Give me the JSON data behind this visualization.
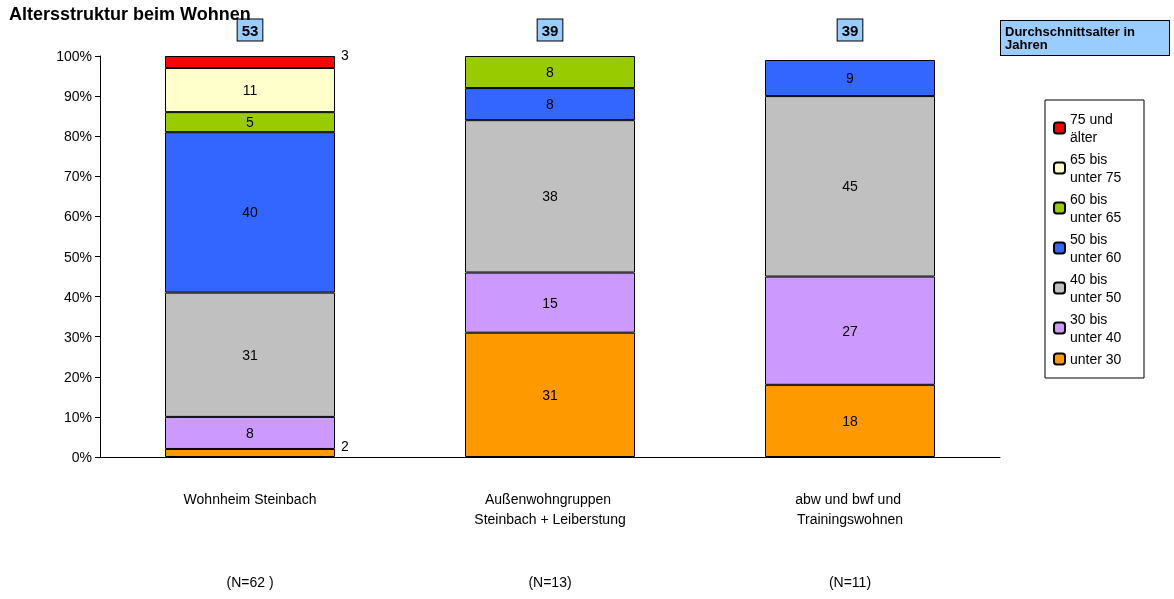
{
  "chart_data": {
    "type": "bar",
    "title": "Altersstruktur beim Wohnen",
    "stacked": true,
    "data_labels": true,
    "grid": false,
    "legend": "right",
    "categories": [
      "Wohnheim Steinbach",
      "Außenwohngruppen Steinbach + Leiberstung",
      "abw und bwf und Trainingswohnen"
    ],
    "ylim": [
      0,
      100
    ],
    "yticks": [
      {
        "value": 0,
        "label": "0%"
      },
      {
        "value": 10,
        "label": "10%"
      },
      {
        "value": 20,
        "label": "20%"
      },
      {
        "value": 30,
        "label": "30%"
      },
      {
        "value": 40,
        "label": "40%"
      },
      {
        "value": 50,
        "label": "50%"
      },
      {
        "value": 60,
        "label": "60%"
      },
      {
        "value": 70,
        "label": "70%"
      },
      {
        "value": 80,
        "label": "80%"
      },
      {
        "value": 90,
        "label": "90%"
      },
      {
        "value": 100,
        "label": "100%"
      }
    ],
    "series": [
      {
        "name": "unter 30",
        "color": "#ff9900",
        "values": [
          2,
          31,
          18
        ]
      },
      {
        "name": "30 bis unter 40",
        "color": "#cc99ff",
        "values": [
          8,
          15,
          27
        ]
      },
      {
        "name": "40 bis unter 50",
        "color": "#c0c0c0",
        "values": [
          31,
          38,
          45
        ]
      },
      {
        "name": "50 bis unter 60",
        "color": "#3366ff",
        "values": [
          40,
          8,
          9
        ]
      },
      {
        "name": "60 bis unter 65",
        "color": "#99cc00",
        "values": [
          5,
          8,
          null
        ]
      },
      {
        "name": "65 bis unter 75",
        "color": "#ffffcc",
        "values": [
          11,
          null,
          null
        ]
      },
      {
        "name": "75 und älter",
        "color": "#ff0000",
        "values": [
          3,
          null,
          null
        ]
      }
    ],
    "annotations": [
      "53",
      "39",
      "39",
      "Durchschnittsalter in Jahren",
      "(N=62 )",
      "(N=13)",
      "(N=11)"
    ]
  }
}
